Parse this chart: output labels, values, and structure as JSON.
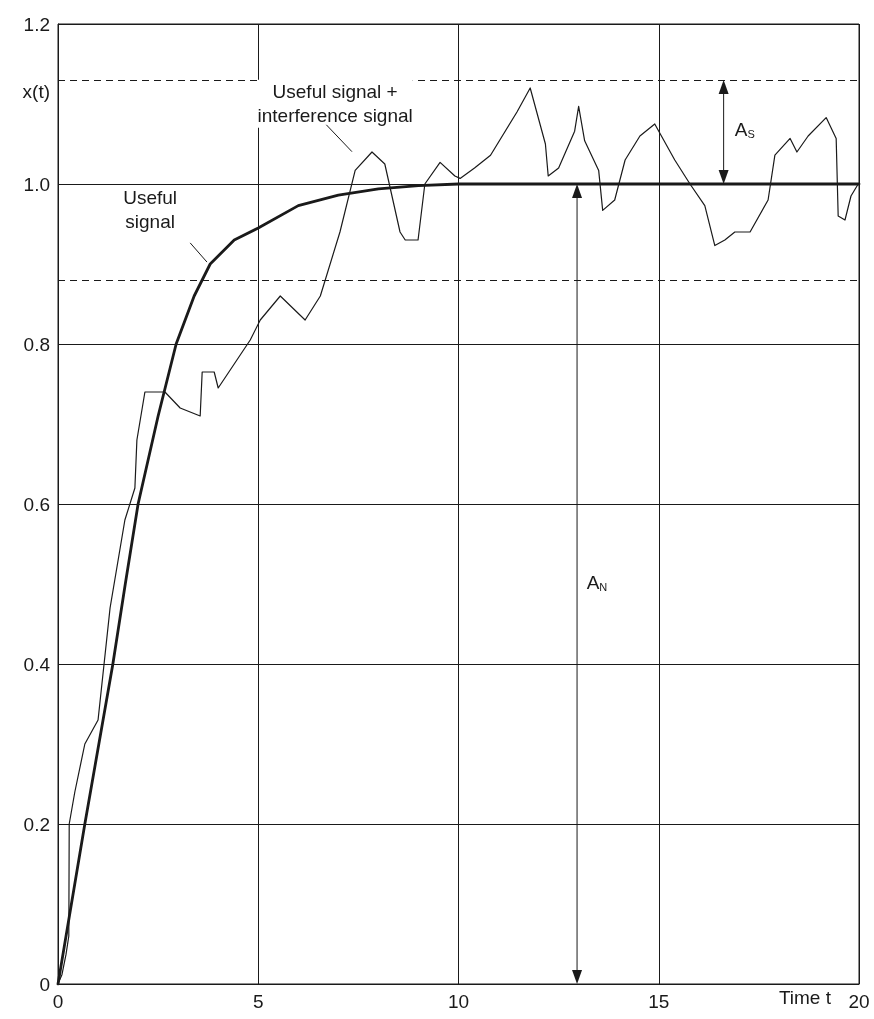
{
  "chart_data": {
    "type": "line",
    "xlabel": "Time t",
    "ylabel": "x(t)",
    "xlim": [
      0,
      20
    ],
    "xticks": [
      0,
      5,
      10,
      15,
      20
    ],
    "ylim": [
      0,
      1.2
    ],
    "yticks": [
      0,
      0.2,
      0.4,
      0.6,
      0.8,
      {
        "value": 1.0,
        "label": "1.0"
      },
      1.2
    ],
    "grid": true,
    "marker": "none",
    "series": [
      {
        "color": "#1a1a1a",
        "x": [
          0,
          0.1,
          0.2,
          0.27,
          0.28,
          0.42,
          0.67,
          1.0,
          1.3,
          1.67,
          1.92,
          1.97,
          2.17,
          2.67,
          3.05,
          3.55,
          3.6,
          3.9,
          4.0,
          4.4,
          4.8,
          5.05,
          5.55,
          6.17,
          6.55,
          7.04,
          7.42,
          7.84,
          8.16,
          8.54,
          8.67,
          8.99,
          9.16,
          9.54,
          9.91,
          10.04,
          10.4,
          10.8,
          11.46,
          11.79,
          12.17,
          12.24,
          12.5,
          12.9,
          13.0,
          13.15,
          13.5,
          13.6,
          13.9,
          14.16,
          14.53,
          14.9,
          15.4,
          15.78,
          16.15,
          16.4,
          16.65,
          16.9,
          17.28,
          17.73,
          17.9,
          18.28,
          18.45,
          18.73,
          19.18,
          19.43,
          19.48,
          19.65,
          19.8,
          19.98
        ],
        "values": [
          0,
          0.012,
          0.037,
          0.06,
          0.2,
          0.24,
          0.3,
          0.33,
          0.47,
          0.58,
          0.62,
          0.68,
          0.74,
          0.74,
          0.72,
          0.71,
          0.765,
          0.765,
          0.745,
          0.775,
          0.805,
          0.83,
          0.86,
          0.83,
          0.86,
          0.94,
          1.017,
          1.04,
          1.025,
          0.94,
          0.93,
          0.93,
          1.0,
          1.027,
          1.01,
          1.007,
          1.02,
          1.036,
          1.09,
          1.12,
          1.05,
          1.01,
          1.02,
          1.066,
          1.097,
          1.054,
          1.017,
          0.967,
          0.98,
          1.03,
          1.06,
          1.075,
          1.03,
          1.0,
          0.973,
          0.923,
          0.93,
          0.94,
          0.94,
          0.98,
          1.036,
          1.057,
          1.04,
          1.06,
          1.083,
          1.057,
          0.96,
          0.955,
          0.985,
          1.0
        ]
      },
      {
        "color": "#1a1a1a",
        "x": [
          0,
          0.67,
          1.37,
          1.68,
          2.0,
          2.5,
          2.95,
          3.4,
          3.8,
          4.4,
          5,
          6,
          7,
          8,
          9,
          10,
          20
        ],
        "values": [
          0,
          0.2,
          0.4,
          0.5,
          0.6,
          0.71,
          0.8,
          0.86,
          0.9,
          0.93,
          0.945,
          0.973,
          0.986,
          0.994,
          0.998,
          1.0,
          1.0
        ]
      }
    ],
    "ref_lines": [
      {
        "axis": "y",
        "value": 1.13,
        "line_style": "dashed",
        "color": "#1a1a1a"
      },
      {
        "axis": "y",
        "value": 0.88,
        "line_style": "dashed",
        "color": "#1a1a1a"
      }
    ],
    "annotations": [
      "Useful signal + interference signal",
      "Useful signal",
      "A$_{S}$",
      "A$_{N}$"
    ]
  }
}
